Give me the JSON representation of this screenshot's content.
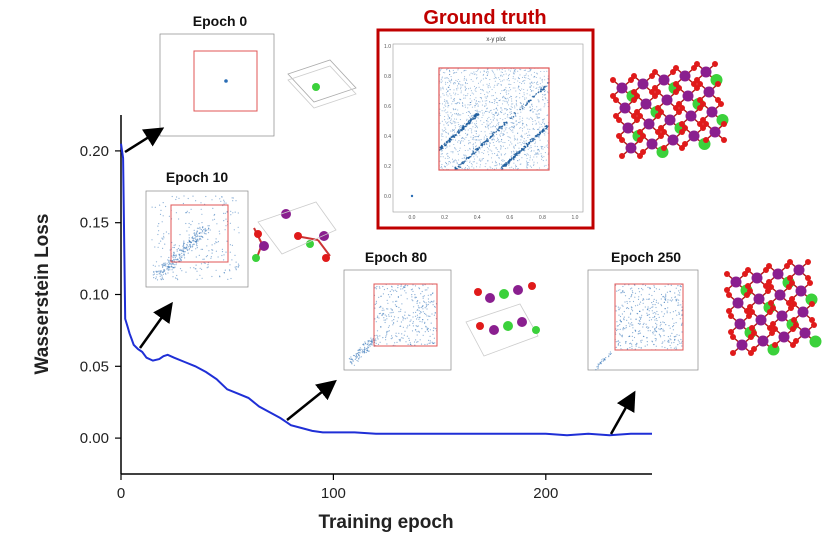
{
  "chart_data": {
    "type": "line",
    "xlabel": "Training epoch",
    "ylabel": "Wasserstein Loss",
    "xlim": [
      0,
      250
    ],
    "ylim": [
      -0.025,
      0.225
    ],
    "x_ticks": [
      0,
      100,
      200
    ],
    "y_ticks": [
      0.0,
      0.05,
      0.1,
      0.15,
      0.2
    ],
    "x_tick_labels": [
      "0",
      "100",
      "200"
    ],
    "y_tick_labels": [
      "0.00",
      "0.05",
      "0.10",
      "0.15",
      "0.20"
    ],
    "series": [
      {
        "color": "#1f2fd6",
        "x": [
          0,
          1,
          2,
          3,
          4,
          5,
          6,
          8,
          10,
          12,
          15,
          18,
          20,
          22,
          25,
          30,
          35,
          40,
          45,
          50,
          55,
          60,
          65,
          70,
          75,
          78,
          80,
          85,
          90,
          95,
          100,
          110,
          120,
          130,
          140,
          150,
          160,
          170,
          180,
          190,
          200,
          210,
          220,
          230,
          240,
          250
        ],
        "y": [
          0.205,
          0.195,
          0.083,
          0.078,
          0.073,
          0.069,
          0.065,
          0.062,
          0.06,
          0.056,
          0.054,
          0.055,
          0.057,
          0.058,
          0.056,
          0.053,
          0.05,
          0.046,
          0.041,
          0.034,
          0.031,
          0.028,
          0.022,
          0.018,
          0.014,
          0.011,
          0.009,
          0.007,
          0.005,
          0.004,
          0.004,
          0.004,
          0.003,
          0.003,
          0.003,
          0.003,
          0.003,
          0.003,
          0.003,
          0.003,
          0.003,
          0.002,
          0.003,
          0.002,
          0.003,
          0.003
        ]
      }
    ],
    "annotations": [
      {
        "text": "Epoch 0",
        "epoch": 0
      },
      {
        "text": "Epoch 10",
        "epoch": 10
      },
      {
        "text": "Epoch 80",
        "epoch": 80
      },
      {
        "text": "Epoch 250",
        "epoch": 250
      },
      {
        "text": "Ground truth"
      }
    ],
    "grid": false,
    "legend": "none"
  },
  "ground_truth_plot": {
    "title": "x-y plot",
    "ticks": [
      "0.0",
      "0.2",
      "0.4",
      "0.6",
      "0.8",
      "1.0"
    ]
  },
  "colors": {
    "line": "#1f2fd6",
    "ground_truth_frame": "#c00000",
    "scatter": "#2a6db5",
    "box": "#e05555",
    "atom_purple": "#8a1f8f",
    "atom_red": "#e01a1a",
    "atom_green": "#3bd13b"
  }
}
